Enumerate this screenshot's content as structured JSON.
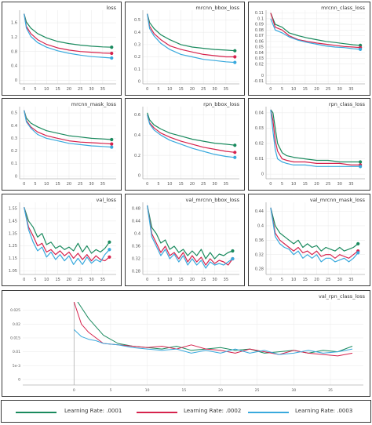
{
  "colors": {
    "series1": "#1a8a5e",
    "series2": "#d6234d",
    "series3": "#39a9dd"
  },
  "legend": [
    {
      "label": "Learning Rate: .0001",
      "color": "#1a8a5e"
    },
    {
      "label": "Learning Rate: .0002",
      "color": "#d6234d"
    },
    {
      "label": "Learning Rate: .0003",
      "color": "#39a9dd"
    }
  ],
  "chart_data": [
    {
      "type": "line",
      "title": "loss",
      "xticks": [
        "0",
        "5",
        "10",
        "15",
        "20",
        "25",
        "30",
        "35"
      ],
      "xlim": [
        -2,
        41
      ],
      "yticks": [
        "0",
        "0.4",
        "0.8",
        "1.2",
        "1.6"
      ],
      "ylim": [
        -0.1,
        1.95
      ],
      "x": [
        0,
        1,
        3,
        6,
        10,
        15,
        20,
        25,
        30,
        35,
        39
      ],
      "series": [
        {
          "values": [
            1.85,
            1.62,
            1.45,
            1.3,
            1.18,
            1.08,
            1.02,
            0.98,
            0.95,
            0.93,
            0.92
          ]
        },
        {
          "values": [
            1.85,
            1.5,
            1.3,
            1.13,
            1.0,
            0.9,
            0.84,
            0.8,
            0.78,
            0.76,
            0.75
          ]
        },
        {
          "values": [
            1.85,
            1.45,
            1.22,
            1.05,
            0.92,
            0.82,
            0.75,
            0.7,
            0.66,
            0.64,
            0.62
          ]
        }
      ]
    },
    {
      "type": "line",
      "title": "mrcnn_bbox_loss",
      "xticks": [
        "0",
        "5",
        "10",
        "15",
        "20",
        "25",
        "30",
        "35"
      ],
      "xlim": [
        -2,
        41
      ],
      "yticks": [
        "0",
        "0.1",
        "0.2",
        "0.3",
        "0.4",
        "0.5"
      ],
      "ylim": [
        -0.02,
        0.58
      ],
      "x": [
        0,
        1,
        3,
        6,
        10,
        15,
        20,
        25,
        30,
        35,
        39
      ],
      "series": [
        {
          "values": [
            0.55,
            0.48,
            0.43,
            0.38,
            0.34,
            0.3,
            0.28,
            0.27,
            0.26,
            0.255,
            0.25
          ]
        },
        {
          "values": [
            0.55,
            0.45,
            0.39,
            0.34,
            0.29,
            0.26,
            0.24,
            0.22,
            0.21,
            0.2,
            0.2
          ]
        },
        {
          "values": [
            0.55,
            0.43,
            0.37,
            0.31,
            0.26,
            0.22,
            0.2,
            0.18,
            0.17,
            0.16,
            0.155
          ]
        }
      ]
    },
    {
      "type": "line",
      "title": "mrcnn_class_loss",
      "xticks": [
        "0",
        "5",
        "10",
        "15",
        "20",
        "25",
        "30",
        "35"
      ],
      "xlim": [
        -2,
        41
      ],
      "yticks": [
        "-0.01",
        "0",
        "0.02",
        "0.03",
        "0.04",
        "0.05",
        "0.06",
        "0.07",
        "0.08",
        "0.09",
        "0.1",
        "0.11"
      ],
      "ylim": [
        -0.015,
        0.115
      ],
      "x": [
        0,
        2,
        5,
        8,
        12,
        16,
        20,
        24,
        28,
        32,
        36,
        39
      ],
      "series": [
        {
          "values": [
            0.11,
            0.09,
            0.085,
            0.075,
            0.07,
            0.066,
            0.063,
            0.06,
            0.058,
            0.056,
            0.054,
            0.053
          ]
        },
        {
          "values": [
            0.11,
            0.085,
            0.08,
            0.07,
            0.063,
            0.06,
            0.057,
            0.055,
            0.053,
            0.051,
            0.05,
            0.049
          ]
        },
        {
          "values": [
            0.1,
            0.08,
            0.075,
            0.068,
            0.062,
            0.058,
            0.055,
            0.052,
            0.05,
            0.049,
            0.047,
            0.046
          ]
        }
      ]
    },
    {
      "type": "line",
      "title": "mrcnn_mask_loss",
      "xticks": [
        "0",
        "5",
        "10",
        "15",
        "20",
        "25",
        "30",
        "35"
      ],
      "xlim": [
        -2,
        41
      ],
      "yticks": [
        "0",
        "0.1",
        "0.2",
        "0.3",
        "0.4",
        "0.5"
      ],
      "ylim": [
        -0.02,
        0.55
      ],
      "x": [
        0,
        1,
        3,
        6,
        10,
        15,
        20,
        25,
        30,
        35,
        39
      ],
      "series": [
        {
          "values": [
            0.52,
            0.46,
            0.42,
            0.39,
            0.36,
            0.34,
            0.32,
            0.31,
            0.3,
            0.295,
            0.29
          ]
        },
        {
          "values": [
            0.52,
            0.44,
            0.39,
            0.35,
            0.32,
            0.3,
            0.28,
            0.27,
            0.265,
            0.26,
            0.255
          ]
        },
        {
          "values": [
            0.52,
            0.43,
            0.38,
            0.33,
            0.3,
            0.28,
            0.26,
            0.25,
            0.24,
            0.235,
            0.23
          ]
        }
      ]
    },
    {
      "type": "line",
      "title": "rpn_bbox_loss",
      "xticks": [
        "0",
        "5",
        "10",
        "15",
        "20",
        "25",
        "30",
        "35"
      ],
      "xlim": [
        -2,
        41
      ],
      "yticks": [
        "0",
        "0.2",
        "0.4",
        "0.6"
      ],
      "ylim": [
        -0.03,
        0.68
      ],
      "x": [
        0,
        1,
        3,
        6,
        10,
        15,
        20,
        25,
        30,
        35,
        39
      ],
      "series": [
        {
          "values": [
            0.62,
            0.55,
            0.5,
            0.46,
            0.42,
            0.39,
            0.36,
            0.34,
            0.32,
            0.31,
            0.3
          ]
        },
        {
          "values": [
            0.6,
            0.52,
            0.47,
            0.42,
            0.38,
            0.34,
            0.31,
            0.28,
            0.26,
            0.24,
            0.23
          ]
        },
        {
          "values": [
            0.6,
            0.51,
            0.45,
            0.4,
            0.35,
            0.31,
            0.27,
            0.24,
            0.21,
            0.19,
            0.18
          ]
        }
      ]
    },
    {
      "type": "line",
      "title": "rpn_class_loss",
      "xticks": [
        "0",
        "5",
        "10",
        "15",
        "20",
        "25",
        "30",
        "35"
      ],
      "xlim": [
        -2,
        41
      ],
      "yticks": [
        "0",
        "0.01",
        "0.02",
        "0.03",
        "0.04"
      ],
      "ylim": [
        -0.003,
        0.044
      ],
      "x": [
        0,
        1,
        2,
        3,
        5,
        7,
        10,
        15,
        20,
        25,
        30,
        35,
        39
      ],
      "series": [
        {
          "values": [
            0.042,
            0.04,
            0.03,
            0.02,
            0.014,
            0.012,
            0.011,
            0.01,
            0.009,
            0.009,
            0.008,
            0.008,
            0.008
          ]
        },
        {
          "values": [
            0.042,
            0.035,
            0.022,
            0.015,
            0.01,
            0.009,
            0.008,
            0.008,
            0.007,
            0.007,
            0.007,
            0.006,
            0.006
          ]
        },
        {
          "values": [
            0.042,
            0.028,
            0.016,
            0.01,
            0.008,
            0.007,
            0.006,
            0.006,
            0.005,
            0.005,
            0.005,
            0.005,
            0.005
          ]
        }
      ]
    },
    {
      "type": "line",
      "title": "val_loss",
      "xticks": [
        "0",
        "5",
        "10",
        "15",
        "20",
        "25",
        "30",
        "35"
      ],
      "xlim": [
        -2,
        41
      ],
      "yticks": [
        "1.05",
        "1.15",
        "1.25",
        "1.35",
        "1.45",
        "1.55"
      ],
      "ylim": [
        1.02,
        1.6
      ],
      "x": [
        0,
        2,
        4,
        6,
        8,
        10,
        12,
        14,
        16,
        18,
        20,
        22,
        24,
        26,
        28,
        30,
        32,
        34,
        36,
        38
      ],
      "series": [
        {
          "values": [
            1.56,
            1.45,
            1.4,
            1.32,
            1.35,
            1.26,
            1.28,
            1.23,
            1.25,
            1.22,
            1.24,
            1.21,
            1.27,
            1.2,
            1.25,
            1.19,
            1.22,
            1.2,
            1.23,
            1.28
          ]
        },
        {
          "values": [
            1.56,
            1.4,
            1.33,
            1.25,
            1.27,
            1.2,
            1.22,
            1.18,
            1.21,
            1.17,
            1.2,
            1.15,
            1.19,
            1.14,
            1.18,
            1.13,
            1.17,
            1.14,
            1.13,
            1.16
          ]
        },
        {
          "values": [
            1.56,
            1.38,
            1.28,
            1.21,
            1.24,
            1.16,
            1.2,
            1.14,
            1.18,
            1.13,
            1.17,
            1.1,
            1.15,
            1.1,
            1.16,
            1.11,
            1.14,
            1.12,
            1.18,
            1.22
          ]
        }
      ]
    },
    {
      "type": "line",
      "title": "val_mrcnn_bbox_loss",
      "xticks": [
        "0",
        "5",
        "10",
        "15",
        "20",
        "25",
        "30",
        "35"
      ],
      "xlim": [
        -2,
        41
      ],
      "yticks": [
        "0.28",
        "0.32",
        "0.36",
        "0.4",
        "0.44",
        "0.48"
      ],
      "ylim": [
        0.27,
        0.5
      ],
      "x": [
        0,
        2,
        4,
        6,
        8,
        10,
        12,
        14,
        16,
        18,
        20,
        22,
        24,
        26,
        28,
        30,
        32,
        34,
        36,
        38
      ],
      "series": [
        {
          "values": [
            0.49,
            0.42,
            0.4,
            0.37,
            0.38,
            0.35,
            0.36,
            0.34,
            0.35,
            0.33,
            0.345,
            0.33,
            0.35,
            0.32,
            0.34,
            0.32,
            0.335,
            0.33,
            0.34,
            0.345
          ]
        },
        {
          "values": [
            0.49,
            0.4,
            0.37,
            0.34,
            0.36,
            0.33,
            0.34,
            0.32,
            0.34,
            0.31,
            0.33,
            0.31,
            0.325,
            0.3,
            0.32,
            0.305,
            0.315,
            0.31,
            0.3,
            0.32
          ]
        },
        {
          "values": [
            0.49,
            0.39,
            0.36,
            0.33,
            0.35,
            0.32,
            0.335,
            0.31,
            0.33,
            0.3,
            0.32,
            0.3,
            0.315,
            0.29,
            0.31,
            0.3,
            0.305,
            0.3,
            0.31,
            0.32
          ]
        }
      ]
    },
    {
      "type": "line",
      "title": "val_mrcnn_mask_loss",
      "xticks": [
        "0",
        "5",
        "10",
        "15",
        "20",
        "25",
        "30",
        "35"
      ],
      "xlim": [
        -2,
        41
      ],
      "yticks": [
        "0.28",
        "0.32",
        "0.36",
        "0.4",
        "0.44"
      ],
      "ylim": [
        0.265,
        0.465
      ],
      "x": [
        0,
        2,
        4,
        6,
        8,
        10,
        12,
        14,
        16,
        18,
        20,
        22,
        24,
        26,
        28,
        30,
        32,
        34,
        36,
        38
      ],
      "series": [
        {
          "values": [
            0.45,
            0.4,
            0.38,
            0.37,
            0.36,
            0.35,
            0.36,
            0.34,
            0.35,
            0.34,
            0.345,
            0.33,
            0.34,
            0.335,
            0.33,
            0.34,
            0.33,
            0.335,
            0.34,
            0.35
          ]
        },
        {
          "values": [
            0.45,
            0.38,
            0.36,
            0.35,
            0.34,
            0.33,
            0.34,
            0.325,
            0.33,
            0.32,
            0.33,
            0.315,
            0.32,
            0.32,
            0.31,
            0.32,
            0.315,
            0.31,
            0.32,
            0.33
          ]
        },
        {
          "values": [
            0.45,
            0.37,
            0.35,
            0.34,
            0.335,
            0.32,
            0.33,
            0.31,
            0.32,
            0.31,
            0.32,
            0.3,
            0.31,
            0.31,
            0.3,
            0.305,
            0.31,
            0.3,
            0.31,
            0.325
          ]
        }
      ]
    },
    {
      "type": "line",
      "title": "val_rpn_class_loss",
      "xticks": [
        "0",
        "5",
        "10",
        "15",
        "20",
        "25",
        "30",
        "35"
      ],
      "xlim": [
        -7,
        39.5
      ],
      "yticks": [
        "0",
        "5e-3",
        "0.01",
        "0.015",
        "0.02",
        "0.025"
      ],
      "ylim": [
        -0.002,
        0.028
      ],
      "x": [
        0,
        1,
        2,
        3,
        4,
        6,
        8,
        10,
        12,
        14,
        16,
        18,
        20,
        22,
        24,
        26,
        28,
        30,
        32,
        34,
        36,
        38
      ],
      "series": [
        {
          "values": [
            0.03,
            0.026,
            0.022,
            0.019,
            0.016,
            0.013,
            0.012,
            0.0115,
            0.011,
            0.012,
            0.0105,
            0.011,
            0.0115,
            0.0105,
            0.011,
            0.0095,
            0.01,
            0.0105,
            0.0095,
            0.0105,
            0.01,
            0.012
          ]
        },
        {
          "values": [
            0.028,
            0.02,
            0.017,
            0.015,
            0.013,
            0.0125,
            0.012,
            0.0115,
            0.012,
            0.011,
            0.0125,
            0.011,
            0.0105,
            0.0095,
            0.011,
            0.01,
            0.009,
            0.0105,
            0.0095,
            0.009,
            0.0085,
            0.0095
          ]
        },
        {
          "values": [
            0.018,
            0.0155,
            0.0145,
            0.014,
            0.013,
            0.0125,
            0.0115,
            0.011,
            0.0105,
            0.011,
            0.0095,
            0.0105,
            0.0095,
            0.011,
            0.0095,
            0.0105,
            0.009,
            0.0095,
            0.0105,
            0.0095,
            0.01,
            0.011
          ]
        }
      ]
    }
  ]
}
